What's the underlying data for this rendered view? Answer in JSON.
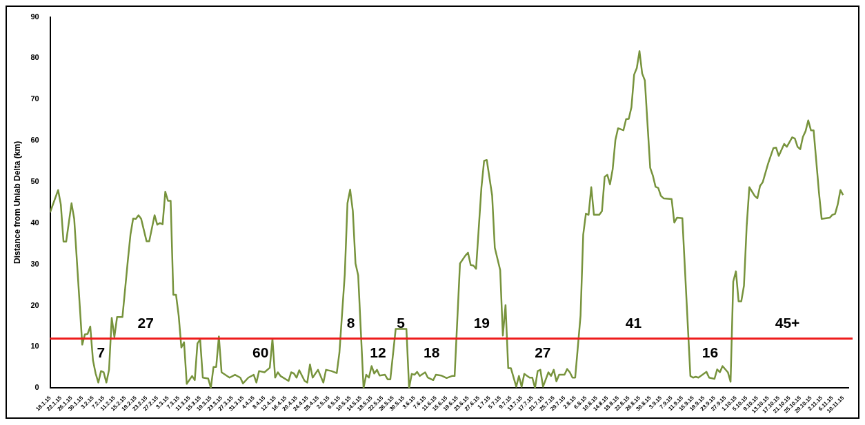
{
  "chart_data": {
    "type": "line",
    "ylabel": "Distance from Uniab Delta (km)",
    "marker": "none",
    "line_style": "solid",
    "ylim": [
      0,
      90
    ],
    "yticks": [
      0,
      10,
      20,
      30,
      40,
      50,
      60,
      70,
      80,
      90
    ],
    "xlim": [
      "--01-18",
      "--11-12"
    ],
    "xticks": [
      {
        "value": "--01-18",
        "label": "18.1.15"
      },
      {
        "value": "--01-22",
        "label": "22.1.15"
      },
      {
        "value": "--01-26",
        "label": "26.1.15"
      },
      {
        "value": "--01-30",
        "label": "30.1.15"
      },
      {
        "value": "--02-03",
        "label": "3.2.15"
      },
      {
        "value": "--02-07",
        "label": "7.2.15"
      },
      {
        "value": "--02-11",
        "label": "11.2.15"
      },
      {
        "value": "--02-15",
        "label": "15.2.15"
      },
      {
        "value": "--02-19",
        "label": "19.2.15"
      },
      {
        "value": "--02-23",
        "label": "23.2.15"
      },
      {
        "value": "--02-27",
        "label": "27.2.15"
      },
      {
        "value": "--03-03",
        "label": "3.3.15"
      },
      {
        "value": "--03-07",
        "label": "7.3.15"
      },
      {
        "value": "--03-11",
        "label": "11.3.15"
      },
      {
        "value": "--03-15",
        "label": "15.3.15"
      },
      {
        "value": "--03-19",
        "label": "19.3.15"
      },
      {
        "value": "--03-23",
        "label": "23.3.15"
      },
      {
        "value": "--03-27",
        "label": "27.3.15"
      },
      {
        "value": "--03-31",
        "label": "31.3.15"
      },
      {
        "value": "--04-04",
        "label": "4.4.15"
      },
      {
        "value": "--04-08",
        "label": "8.4.15"
      },
      {
        "value": "--04-12",
        "label": "12.4.15"
      },
      {
        "value": "--04-16",
        "label": "16.4.15"
      },
      {
        "value": "--04-20",
        "label": "20.4.15"
      },
      {
        "value": "--04-24",
        "label": "24.4.15"
      },
      {
        "value": "--04-28",
        "label": "28.4.15"
      },
      {
        "value": "--05-02",
        "label": "2.5.15"
      },
      {
        "value": "--05-06",
        "label": "6.5.15"
      },
      {
        "value": "--05-10",
        "label": "10.5.15"
      },
      {
        "value": "--05-14",
        "label": "14.5.15"
      },
      {
        "value": "--05-18",
        "label": "18.5.15"
      },
      {
        "value": "--05-22",
        "label": "22.5.15"
      },
      {
        "value": "--05-26",
        "label": "26.5.15"
      },
      {
        "value": "--05-30",
        "label": "30.5.15"
      },
      {
        "value": "--06-03",
        "label": "3.6.15"
      },
      {
        "value": "--06-07",
        "label": "7.6.15"
      },
      {
        "value": "--06-11",
        "label": "11.6.15"
      },
      {
        "value": "--06-15",
        "label": "15.6.15"
      },
      {
        "value": "--06-19",
        "label": "19.6.15"
      },
      {
        "value": "--06-23",
        "label": "23.6.15"
      },
      {
        "value": "--06-27",
        "label": "27.6.15"
      },
      {
        "value": "--07-01",
        "label": "1.7.15"
      },
      {
        "value": "--07-05",
        "label": "5.7.15"
      },
      {
        "value": "--07-09",
        "label": "9.7.15"
      },
      {
        "value": "--07-13",
        "label": "13.7.15"
      },
      {
        "value": "--07-17",
        "label": "17.7.15"
      },
      {
        "value": "--07-21",
        "label": "21.7.15"
      },
      {
        "value": "--07-25",
        "label": "25.7.15"
      },
      {
        "value": "--07-29",
        "label": "29.7.15"
      },
      {
        "value": "--08-02",
        "label": "2.8.15"
      },
      {
        "value": "--08-06",
        "label": "6.8.15"
      },
      {
        "value": "--08-10",
        "label": "10.8.15"
      },
      {
        "value": "--08-14",
        "label": "14.8.15"
      },
      {
        "value": "--08-18",
        "label": "18.8.15"
      },
      {
        "value": "--08-22",
        "label": "22.8.15"
      },
      {
        "value": "--08-26",
        "label": "26.8.15"
      },
      {
        "value": "--08-30",
        "label": "30.8.15"
      },
      {
        "value": "--09-03",
        "label": "3.9.15"
      },
      {
        "value": "--09-07",
        "label": "7.9.15"
      },
      {
        "value": "--09-11",
        "label": "11.9.15"
      },
      {
        "value": "--09-15",
        "label": "15.9.15"
      },
      {
        "value": "--09-19",
        "label": "19.9.15"
      },
      {
        "value": "--09-23",
        "label": "23.9.15"
      },
      {
        "value": "--09-27",
        "label": "27.9.15"
      },
      {
        "value": "--10-01",
        "label": "1.10.15"
      },
      {
        "value": "--10-05",
        "label": "5.10.15"
      },
      {
        "value": "--10-09",
        "label": "9.10.15"
      },
      {
        "value": "--10-13",
        "label": "13.10.15"
      },
      {
        "value": "--10-17",
        "label": "17.10.15"
      },
      {
        "value": "--10-21",
        "label": "21.10.15"
      },
      {
        "value": "--10-25",
        "label": "25.10.15"
      },
      {
        "value": "--10-29",
        "label": "29.10.15"
      },
      {
        "value": "--11-02",
        "label": "2.11.15"
      },
      {
        "value": "--11-06",
        "label": "6.11.15"
      },
      {
        "value": "--11-10",
        "label": "10.11.15"
      }
    ],
    "x": [
      "--01-18",
      "--01-21",
      "--01-22",
      "--01-23",
      "--01-24",
      "--01-26",
      "--01-27",
      "--01-30",
      "--01-31",
      "--02-01",
      "--02-02",
      "--02-03",
      "--02-04",
      "--02-05",
      "--02-06",
      "--02-07",
      "--02-08",
      "--02-09",
      "--02-10",
      "--02-11",
      "--02-12",
      "--02-14",
      "--02-16",
      "--02-17",
      "--02-18",
      "--02-19",
      "--02-20",
      "--02-21",
      "--02-23",
      "--02-24",
      "--02-26",
      "--02-27",
      "--02-28",
      "--03-01",
      "--03-02",
      "--03-03",
      "--03-04",
      "--03-05",
      "--03-06",
      "--03-07",
      "--03-08",
      "--03-09",
      "--03-10",
      "--03-12",
      "--03-13",
      "--03-14",
      "--03-15",
      "--03-16",
      "--03-18",
      "--03-19",
      "--03-20",
      "--03-21",
      "--03-22",
      "--03-23",
      "--03-26",
      "--03-28",
      "--03-30",
      "--03-31",
      "--04-02",
      "--04-04",
      "--04-05",
      "--04-06",
      "--04-08",
      "--04-10",
      "--04-11",
      "--04-12",
      "--04-13",
      "--04-14",
      "--04-17",
      "--04-18",
      "--04-19",
      "--04-20",
      "--04-21",
      "--04-23",
      "--04-24",
      "--04-25",
      "--04-26",
      "--04-28",
      "--04-30",
      "--05-01",
      "--05-03",
      "--05-05",
      "--05-06",
      "--05-08",
      "--05-09",
      "--05-10",
      "--05-11",
      "--05-12",
      "--05-13",
      "--05-15",
      "--05-16",
      "--05-17",
      "--05-18",
      "--05-19",
      "--05-20",
      "--05-21",
      "--05-23",
      "--05-24",
      "--05-25",
      "--05-27",
      "--05-31",
      "--06-01",
      "--06-02",
      "--06-03",
      "--06-04",
      "--06-05",
      "--06-07",
      "--06-08",
      "--06-10",
      "--06-11",
      "--06-13",
      "--06-15",
      "--06-17",
      "--06-18",
      "--06-20",
      "--06-22",
      "--06-23",
      "--06-24",
      "--06-25",
      "--06-26",
      "--06-28",
      "--06-29",
      "--06-30",
      "--07-02",
      "--07-03",
      "--07-05",
      "--07-06",
      "--07-07",
      "--07-08",
      "--07-09",
      "--07-11",
      "--07-12",
      "--07-13",
      "--07-14",
      "--07-16",
      "--07-17",
      "--07-18",
      "--07-19",
      "--07-20",
      "--07-21",
      "--07-23",
      "--07-24",
      "--07-25",
      "--07-26",
      "--07-27",
      "--07-29",
      "--07-30",
      "--07-31",
      "--08-01",
      "--08-02",
      "--08-04",
      "--08-05",
      "--08-06",
      "--08-07",
      "--08-08",
      "--08-09",
      "--08-11",
      "--08-12",
      "--08-13",
      "--08-14",
      "--08-15",
      "--08-16",
      "--08-17",
      "--08-18",
      "--08-20",
      "--08-21",
      "--08-22",
      "--08-23",
      "--08-24",
      "--08-25",
      "--08-26",
      "--08-27",
      "--08-28",
      "--08-30",
      "--08-31",
      "--09-01",
      "--09-02",
      "--09-03",
      "--09-04",
      "--09-07",
      "--09-08",
      "--09-09",
      "--09-11",
      "--09-14",
      "--09-15",
      "--09-16",
      "--09-17",
      "--09-20",
      "--09-21",
      "--09-23",
      "--09-24",
      "--09-25",
      "--09-26",
      "--09-28",
      "--09-29",
      "--09-30",
      "--10-01",
      "--10-02",
      "--10-03",
      "--10-04",
      "--10-05",
      "--10-06",
      "--10-08",
      "--10-09",
      "--10-10",
      "--10-11",
      "--10-13",
      "--10-15",
      "--10-16",
      "--10-17",
      "--10-19",
      "--10-20",
      "--10-22",
      "--10-23",
      "--10-24",
      "--10-25",
      "--10-26",
      "--10-27",
      "--10-28",
      "--10-29",
      "--10-30",
      "--11-01",
      "--11-02",
      "--11-05",
      "--11-06",
      "--11-07",
      "--11-08",
      "--11-09",
      "--11-10"
    ],
    "series": [
      {
        "color": "#77933c",
        "values": [
          42.6,
          48,
          44.5,
          35.5,
          35.5,
          44.8,
          41,
          10.5,
          13,
          13.1,
          14.9,
          6.7,
          3.5,
          1.3,
          4.1,
          3.8,
          1.3,
          4.4,
          17,
          12.4,
          17.2,
          17.2,
          30.8,
          37.2,
          41.1,
          41,
          41.9,
          41,
          35.6,
          35.6,
          41.9,
          39.6,
          40,
          39.7,
          47.6,
          45.4,
          45.4,
          22.6,
          22.6,
          17.5,
          9.8,
          11.1,
          1,
          2.9,
          1.9,
          10.8,
          11.8,
          2.5,
          2.3,
          0,
          5.1,
          5.1,
          12.5,
          3.8,
          2.5,
          3.2,
          2.5,
          1.1,
          2.5,
          3.2,
          1.3,
          4.1,
          3.8,
          4.9,
          11.9,
          2.5,
          3.8,
          2.9,
          1.7,
          3.8,
          3.5,
          2.5,
          4.3,
          1.7,
          1.3,
          5.7,
          2.5,
          4.4,
          1.3,
          4.4,
          4.1,
          3.6,
          8.6,
          27.6,
          44.8,
          48.1,
          42.9,
          30.2,
          27.3,
          0,
          3.2,
          2.5,
          5.3,
          3.5,
          4.4,
          3,
          3.2,
          2.1,
          2.1,
          14.3,
          14.3,
          0,
          3.4,
          3.2,
          3.9,
          2.9,
          3.8,
          2.5,
          1.9,
          3.2,
          3,
          2.4,
          2.9,
          2.9,
          30.2,
          32.1,
          32.8,
          29.8,
          29.7,
          28.9,
          48.6,
          55.1,
          55.3,
          46.7,
          34,
          28.6,
          12.7,
          20.1,
          4.8,
          4.8,
          0.3,
          2.9,
          0.3,
          3.4,
          2.5,
          2.5,
          0,
          4.1,
          4.4,
          0.3,
          3.8,
          2.9,
          4.4,
          1.6,
          3.2,
          3.2,
          4.6,
          3.8,
          2.5,
          2.5,
          17.5,
          37.2,
          42.3,
          42,
          48.7,
          42,
          42,
          42.9,
          51.2,
          51.7,
          49.4,
          53.1,
          60.1,
          63,
          62.5,
          65.2,
          65.3,
          68.1,
          76,
          77.6,
          81.7,
          76.3,
          74.6,
          53.4,
          51.5,
          48.8,
          48.5,
          46.6,
          46,
          45.8,
          40.1,
          41.3,
          41.2,
          2.9,
          2.5,
          2.7,
          2.5,
          3.9,
          2.5,
          2.2,
          4.5,
          3.8,
          5.3,
          3.8,
          1.5,
          25.8,
          28.3,
          21,
          21,
          24.8,
          39.1,
          48.7,
          46.6,
          46,
          49,
          49.9,
          54.4,
          58.2,
          58.3,
          56.3,
          59.2,
          58.5,
          60.8,
          60.5,
          58.5,
          57.9,
          60.9,
          62.3,
          64.9,
          62.5,
          62.5,
          47.4,
          41,
          41.3,
          42,
          42.2,
          44.5,
          48,
          46.8
        ]
      }
    ],
    "ref_lines": [
      {
        "axis": "y",
        "value": 12,
        "color": "#ee1c1c"
      }
    ],
    "annotations": [
      "7",
      "27",
      "60",
      "8",
      "12",
      "5",
      "18",
      "19",
      "27",
      "41",
      "16",
      "45+"
    ]
  }
}
